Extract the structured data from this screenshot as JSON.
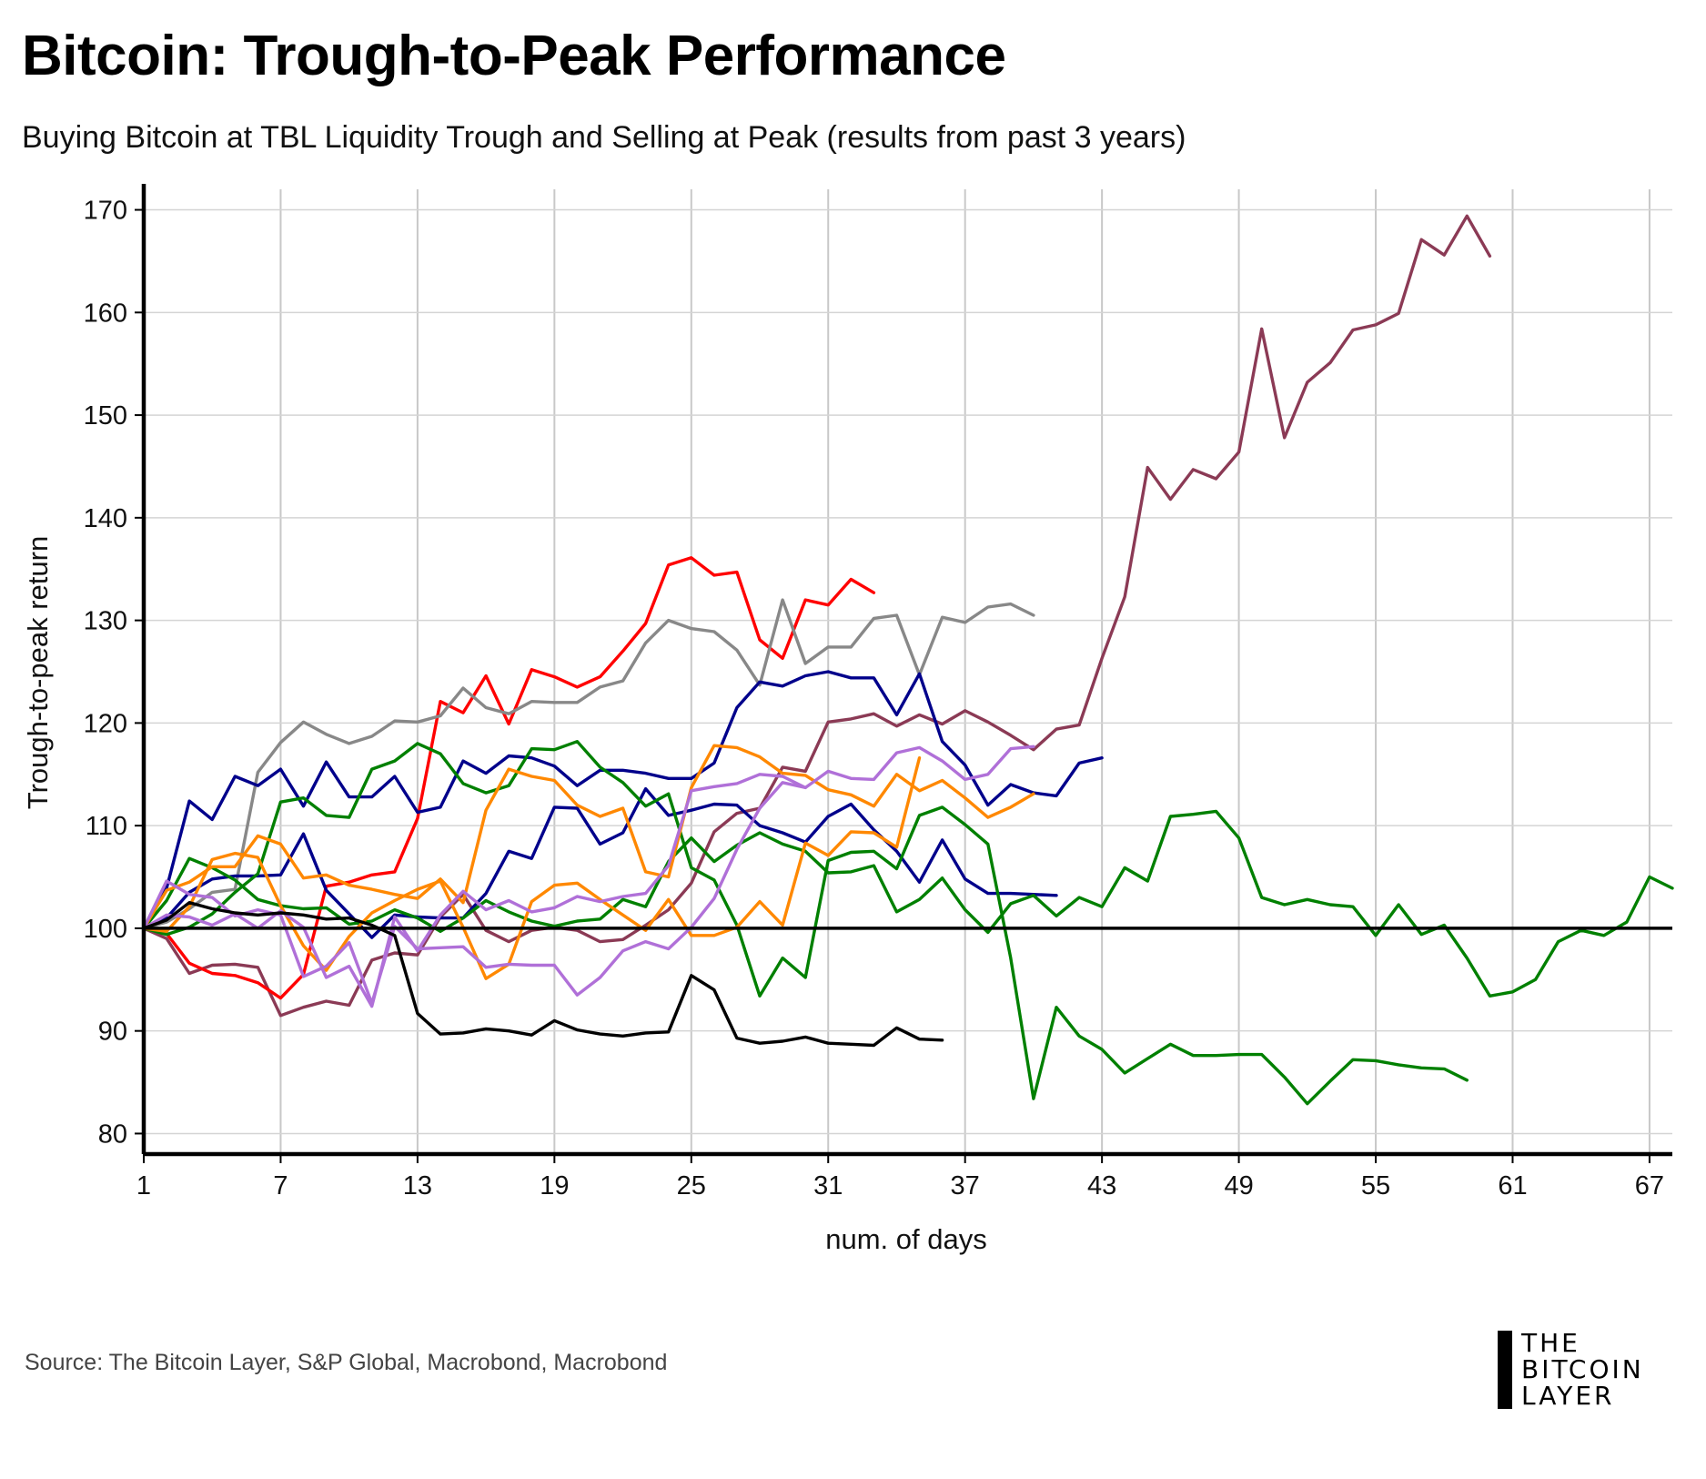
{
  "title": "Bitcoin: Trough-to-Peak Performance",
  "subtitle": "Buying Bitcoin at TBL Liquidity Trough and Selling at Peak (results from past 3 years)",
  "source": "Source: The Bitcoin Layer, S&P Global, Macrobond, Macrobond",
  "logo": {
    "line1": "THE",
    "line2": "BITCOIN",
    "line3": "LAYER"
  },
  "chart_data": {
    "type": "line",
    "title": "Bitcoin: Trough-to-Peak Performance",
    "subtitle": "Buying Bitcoin at TBL Liquidity Trough and Selling at Peak (results from past 3 years)",
    "xlabel": "num. of days",
    "ylabel": "Trough-to-peak return",
    "xlim": [
      1,
      68
    ],
    "ylim": [
      78,
      172
    ],
    "xticks": [
      1,
      7,
      13,
      19,
      25,
      31,
      37,
      43,
      49,
      55,
      61,
      67
    ],
    "yticks": [
      80,
      90,
      100,
      110,
      120,
      130,
      140,
      150,
      160,
      170
    ],
    "reference_line": 100,
    "grid": true,
    "legend": "none",
    "series": [
      {
        "color": "#8b3a55",
        "values": [
          100,
          99,
          95.6,
          96.4,
          96.5,
          96.2,
          91.5,
          92.3,
          92.9,
          92.5,
          96.9,
          97.6,
          97.4,
          101.1,
          103.3,
          99.8,
          98.7,
          99.8,
          100.1,
          99.8,
          98.7,
          98.9,
          100.3,
          101.8,
          104.4,
          109.4,
          111.2,
          111.7,
          115.7,
          115.3,
          120.1,
          120.4,
          120.9,
          119.7,
          120.8,
          119.9,
          121.2,
          120.1,
          118.8,
          117.4,
          119.4,
          119.8,
          126.3,
          132.3,
          144.9,
          141.8,
          144.7,
          143.8,
          146.4,
          158.4,
          147.8,
          153.2,
          155.1,
          158.3,
          158.8,
          159.9,
          167.1,
          165.6,
          169.4,
          165.5
        ]
      },
      {
        "color": "#ff0000",
        "values": [
          100,
          99.5,
          96.6,
          95.6,
          95.4,
          94.7,
          93.2,
          95.5,
          104.1,
          104.5,
          105.2,
          105.5,
          110.7,
          122.1,
          121,
          124.6,
          119.9,
          125.2,
          124.5,
          123.5,
          124.5,
          127,
          129.7,
          135.4,
          136.1,
          134.4,
          134.7,
          128.1,
          126.3,
          132,
          131.5,
          134,
          132.7
        ]
      },
      {
        "color": "#888888",
        "values": [
          100,
          100.6,
          101.9,
          103.5,
          103.8,
          115.2,
          118.1,
          120.1,
          118.9,
          118,
          118.7,
          120.2,
          120.1,
          120.7,
          123.4,
          121.5,
          120.9,
          122.1,
          122,
          122,
          123.5,
          124.1,
          127.8,
          130,
          129.2,
          128.9,
          127.1,
          123.7,
          132,
          125.8,
          127.4,
          127.4,
          130.2,
          130.5,
          124.7,
          130.3,
          129.8,
          131.3,
          131.6,
          130.5
        ]
      },
      {
        "color": "#00008b",
        "values": [
          100,
          101,
          103.5,
          104.8,
          105.1,
          105.1,
          105.2,
          109.2,
          103.7,
          101.4,
          99.1,
          101.3,
          101.1,
          101,
          101,
          103.4,
          107.5,
          106.8,
          111.8,
          111.7,
          108.2,
          109.3,
          113.6,
          111,
          111.5,
          112.1,
          112,
          110,
          109.3,
          108.4,
          110.9,
          112.1,
          109.6,
          107.5,
          104.5,
          108.6,
          104.8,
          103.4,
          103.4,
          103.3,
          103.2
        ]
      },
      {
        "color": "#00008b",
        "values": [
          100,
          103.9,
          112.4,
          110.6,
          114.8,
          113.9,
          115.5,
          111.9,
          116.2,
          112.8,
          112.8,
          114.8,
          111.3,
          111.8,
          116.3,
          115.1,
          116.8,
          116.6,
          115.8,
          113.9,
          115.4,
          115.4,
          115.1,
          114.6,
          114.6,
          116.1,
          121.5,
          124,
          123.6,
          124.6,
          125,
          124.4,
          124.4,
          120.8,
          124.8,
          118.2,
          115.9,
          112,
          114,
          113.2,
          112.9,
          116.1,
          116.6
        ]
      },
      {
        "color": "#008000",
        "values": [
          100,
          99.4,
          100.1,
          101.4,
          103.5,
          105.3,
          112.3,
          112.7,
          111,
          110.8,
          115.5,
          116.3,
          118,
          117,
          114.1,
          113.2,
          113.9,
          117.5,
          117.4,
          118.2,
          115.7,
          114.2,
          111.9,
          113.1,
          105.9,
          104.7,
          100.3,
          93.4,
          97.1,
          95.2,
          106.6,
          107.4,
          107.5,
          105.8,
          111,
          111.8,
          110.1,
          108.2,
          97.1,
          83.4,
          92.3,
          89.5,
          88.2,
          85.9,
          87.3,
          88.7,
          87.6,
          87.6,
          87.7,
          87.7,
          85.5,
          82.9,
          85.1,
          87.2,
          87.1,
          86.7,
          86.4,
          86.3,
          85.2
        ]
      },
      {
        "color": "#008000",
        "values": [
          100,
          102.7,
          106.8,
          105.9,
          104.7,
          102.8,
          102.2,
          101.9,
          102,
          100.4,
          100.7,
          101.8,
          101,
          99.7,
          101,
          102.7,
          101.6,
          100.7,
          100.2,
          100.7,
          100.9,
          102.8,
          102.1,
          106.5,
          108.8,
          106.5,
          108.1,
          109.3,
          108.2,
          107.5,
          105.4,
          105.5,
          106.1,
          101.6,
          102.8,
          104.9,
          101.8,
          99.6,
          102.4,
          103.2,
          101.2,
          103,
          102.1,
          105.9,
          104.6,
          110.9,
          111.1,
          111.4,
          108.8,
          103,
          102.3,
          102.8,
          102.3,
          102.1,
          99.3,
          102.3,
          99.4,
          100.3,
          97.1,
          93.4,
          93.8,
          95,
          98.7,
          99.8,
          99.3,
          100.6,
          105,
          103.9
        ]
      },
      {
        "color": "#ff8800",
        "values": [
          100,
          103.7,
          104.5,
          106,
          106,
          109,
          108.2,
          104.9,
          105.2,
          104.2,
          103.8,
          103.3,
          102.9,
          104.8,
          102.5,
          111.5,
          115.5,
          114.8,
          114.4,
          112,
          110.9,
          111.7,
          105.5,
          105,
          113.7,
          117.8,
          117.6,
          116.7,
          115.1,
          114.9,
          113.5,
          113,
          111.9,
          115,
          113.4,
          114.4,
          112.7,
          110.8,
          111.8,
          113.1
        ]
      },
      {
        "color": "#ff8800",
        "values": [
          100,
          99.7,
          102.1,
          106.7,
          107.3,
          106.9,
          102.2,
          98.3,
          95.9,
          99.2,
          101.5,
          102.7,
          103.8,
          104.6,
          100.1,
          95.1,
          96.5,
          102.6,
          104.2,
          104.4,
          102.8,
          101.3,
          99.8,
          102.8,
          99.3,
          99.3,
          100.1,
          102.6,
          100.3,
          108.3,
          107.1,
          109.4,
          109.3,
          107.9,
          116.6
        ]
      },
      {
        "color": "#b070d8",
        "values": [
          100,
          104.6,
          103.3,
          103,
          101.2,
          101.8,
          101.3,
          95.3,
          96.3,
          98.6,
          92.7,
          100.2,
          98,
          98.1,
          98.2,
          96.2,
          96.5,
          96.4,
          96.4,
          93.5,
          95.2,
          97.8,
          98.7,
          98,
          100.1,
          102.9,
          107.7,
          111.7,
          114.2,
          113.7,
          115.3,
          114.6,
          114.5,
          117.1,
          117.6,
          116.3,
          114.5,
          115,
          117.5,
          117.7
        ]
      },
      {
        "color": "#b070d8",
        "values": [
          100,
          101.3,
          101.1,
          100.3,
          101.4,
          100,
          101.7,
          100.1,
          95.2,
          96.3,
          92.4,
          101.1,
          97.8,
          101.3,
          103.6,
          101.8,
          102.7,
          101.6,
          102,
          103.1,
          102.6,
          103.1,
          103.4,
          106.1,
          113.4,
          113.8,
          114.1,
          115,
          114.8,
          113.7
        ]
      },
      {
        "color": "#000000",
        "values": [
          100,
          100.8,
          102.5,
          101.9,
          101.5,
          101.3,
          101.5,
          101.3,
          100.9,
          101,
          100.3,
          99.3,
          91.7,
          89.7,
          89.8,
          90.2,
          90,
          89.6,
          91,
          90.1,
          89.7,
          89.5,
          89.8,
          89.9,
          95.4,
          94,
          89.3,
          88.8,
          89,
          89.4,
          88.8,
          88.7,
          88.6,
          90.3,
          89.2,
          89.1
        ]
      }
    ]
  }
}
